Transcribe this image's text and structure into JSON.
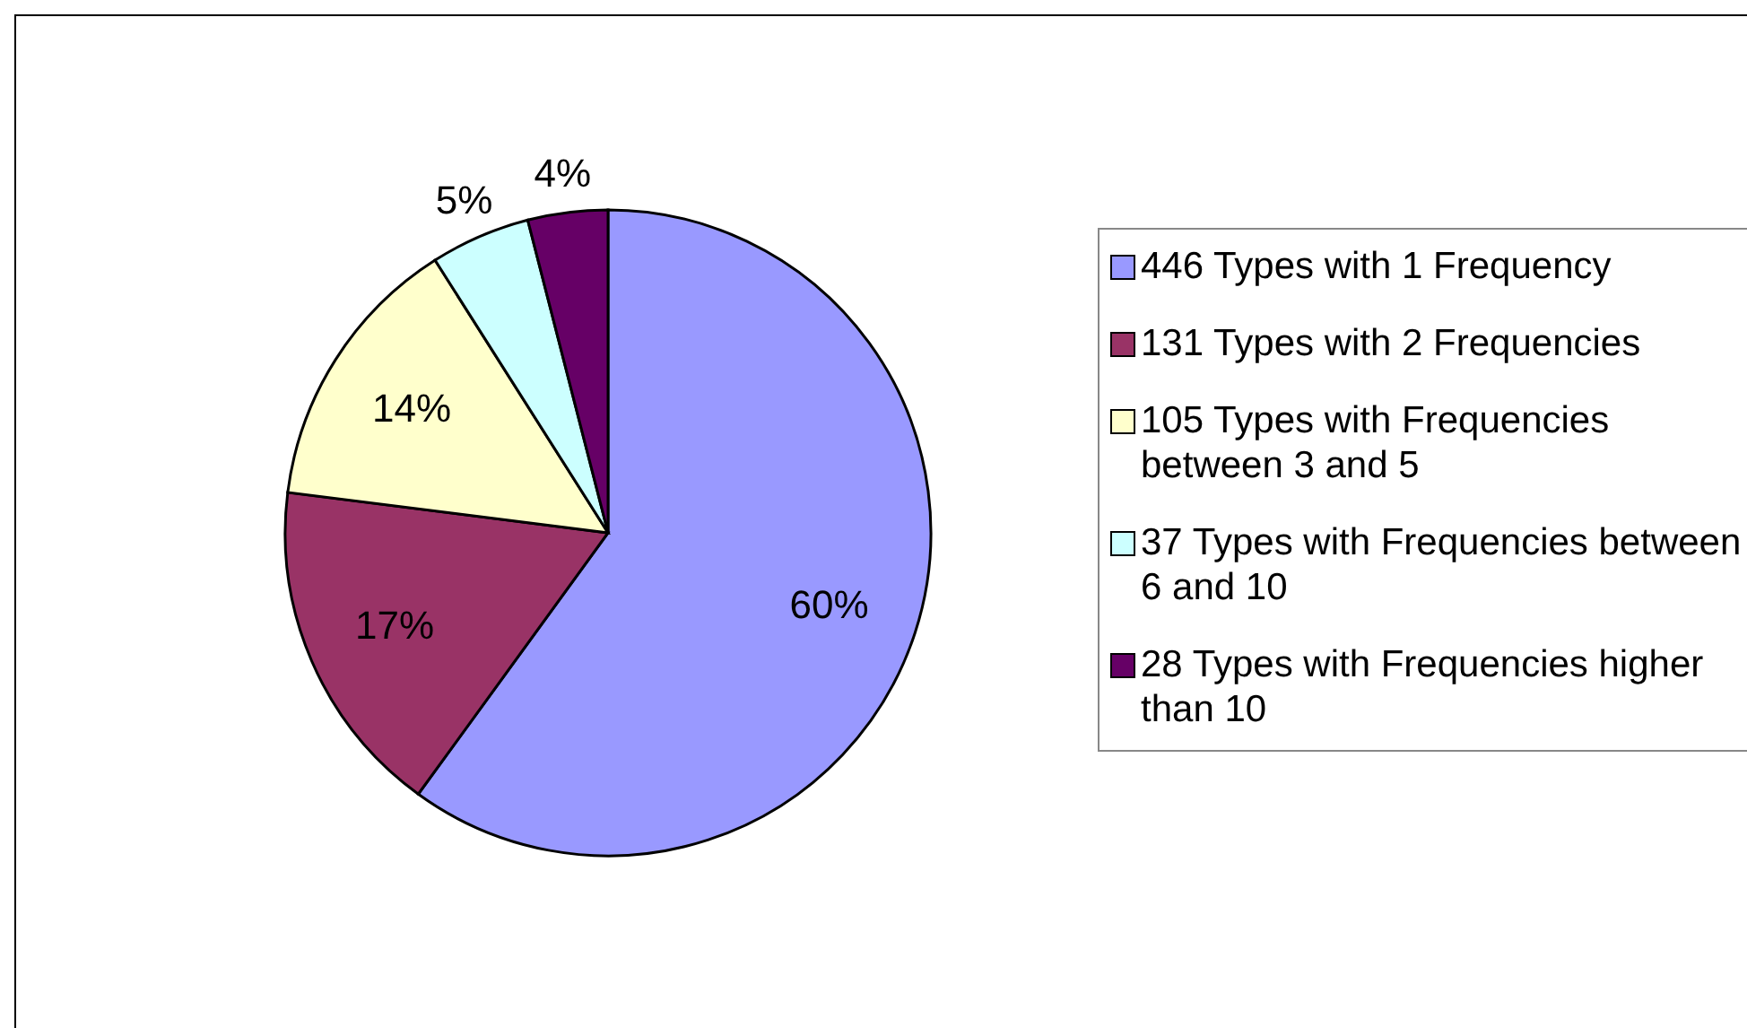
{
  "chart_data": {
    "type": "pie",
    "categories": [
      "446 Types with 1 Frequency",
      "131 Types with 2 Frequencies",
      "105 Types with Frequencies between 3 and 5",
      "37 Types with Frequencies between 6 and 10",
      "28 Types with Frequencies higher than 10"
    ],
    "values": [
      60,
      17,
      14,
      5,
      4
    ],
    "colors": [
      "#9999ff",
      "#993366",
      "#ffffcc",
      "#ccffff",
      "#660066"
    ],
    "value_labels": [
      "60%",
      "17%",
      "14%",
      "5%",
      "4%"
    ],
    "legend": "right"
  }
}
